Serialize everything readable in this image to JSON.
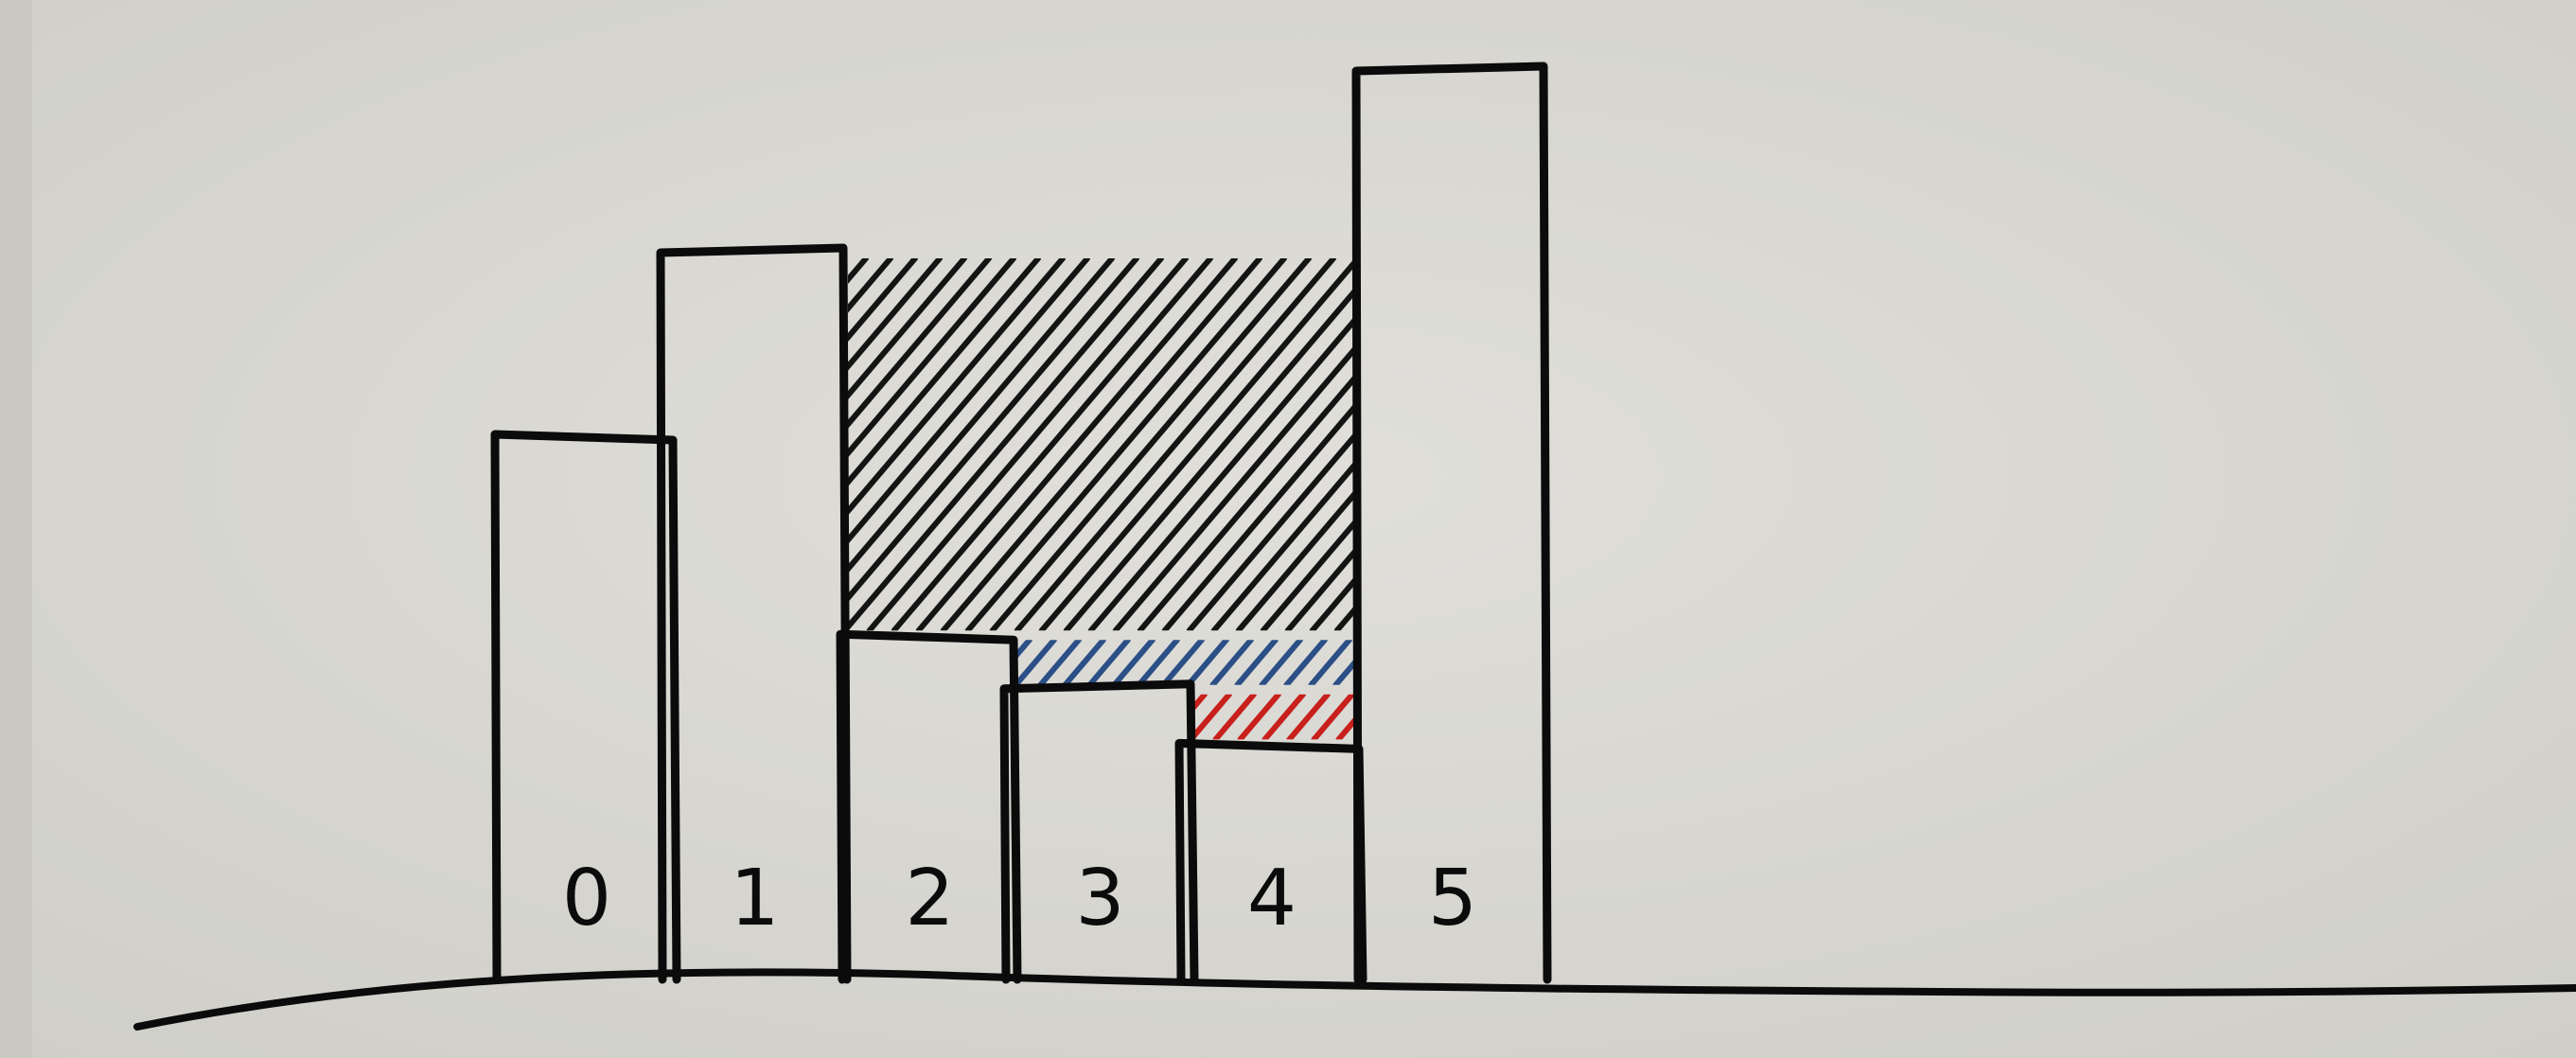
{
  "bars": [
    {
      "index": 0,
      "label": "0",
      "height": 3
    },
    {
      "index": 1,
      "label": "1",
      "height": 4
    },
    {
      "index": 2,
      "label": "2",
      "height": 1.9
    },
    {
      "index": 3,
      "label": "3",
      "height": 1.6
    },
    {
      "index": 4,
      "label": "4",
      "height": 1.3
    },
    {
      "index": 5,
      "label": "5",
      "height": 5
    }
  ],
  "hatched_regions": [
    {
      "name": "trapped-water-black",
      "from_index": 2,
      "to_index": 4,
      "top_height": 4,
      "bottom_height": 1.9,
      "color": "#141414"
    },
    {
      "name": "trapped-water-blue",
      "from_index": 3,
      "to_index": 4,
      "top_height": 1.9,
      "bottom_height": 1.6,
      "color": "#2b4f86"
    },
    {
      "name": "trapped-water-red",
      "from_index": 4,
      "to_index": 4,
      "top_height": 1.6,
      "bottom_height": 1.3,
      "color": "#c8201c"
    }
  ],
  "colors": {
    "paper": "#d9d8d2",
    "ink": "#0b0b0b"
  }
}
